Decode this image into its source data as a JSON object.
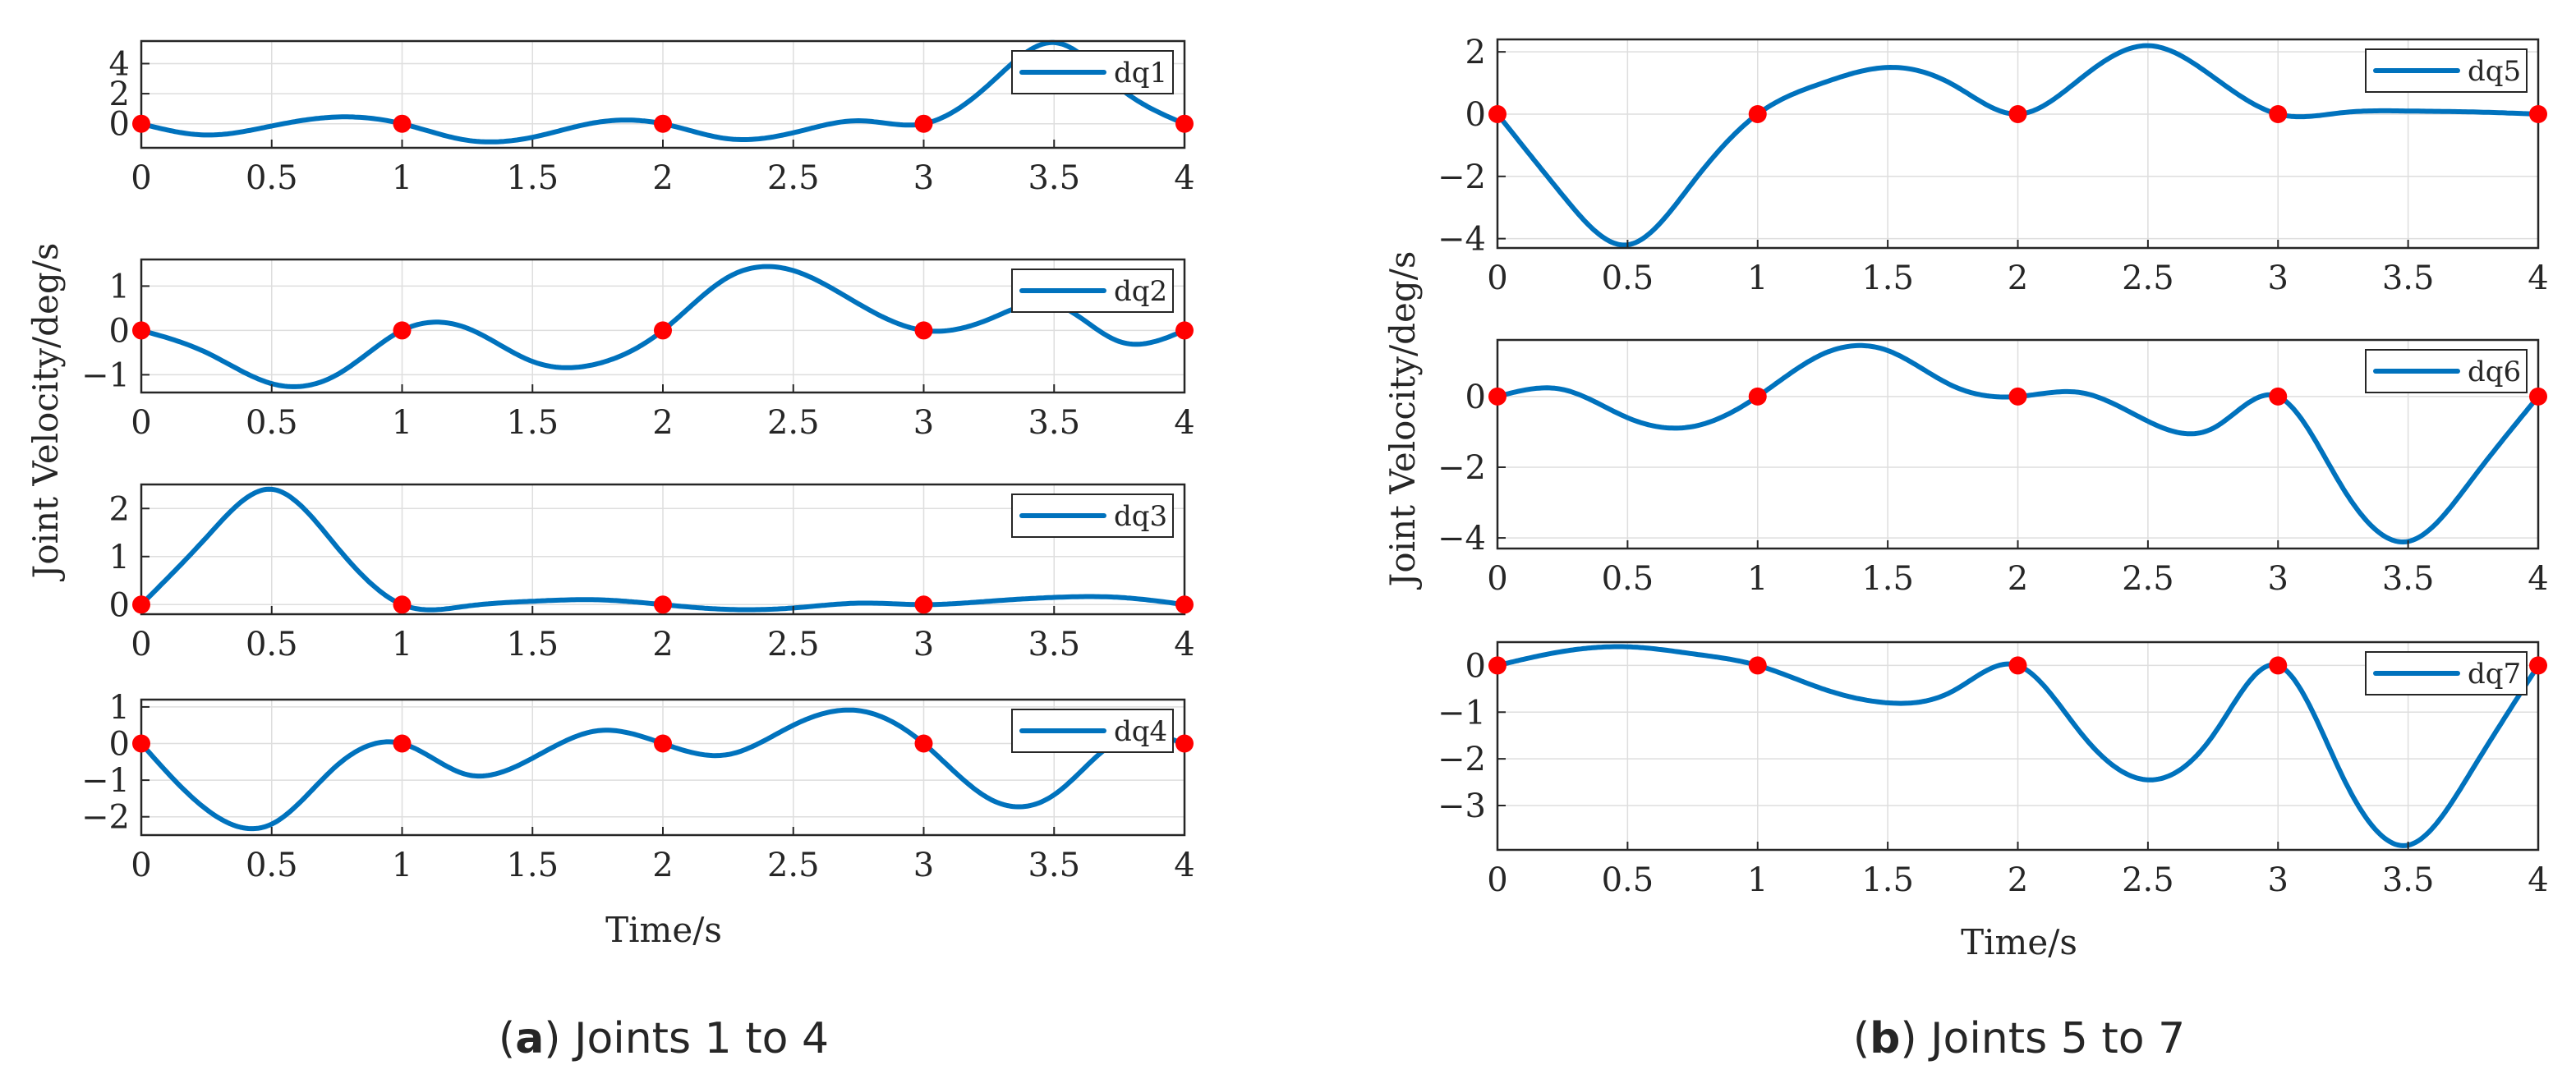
{
  "colors": {
    "line": "#0072BD",
    "marker": "#FF0000"
  },
  "captions": [
    {
      "letter": "a",
      "text": "Joints 1 to 4"
    },
    {
      "letter": "b",
      "text": "Joints 5 to 7"
    }
  ],
  "panels": [
    {
      "id": "a",
      "ylabel": "Joint Velocity/deg/s",
      "xlabel": "Time/s"
    },
    {
      "id": "b",
      "ylabel": "Joint Velocity/deg/s",
      "xlabel": "Time/s"
    }
  ],
  "chart_data": [
    {
      "type": "line",
      "panel": "a",
      "title": "",
      "legend": "dq1",
      "legend_position": "top-right",
      "xlim": [
        0,
        4
      ],
      "ylim": [
        -1.6,
        5.5
      ],
      "xticks": [
        0,
        0.5,
        1,
        1.5,
        2,
        2.5,
        3,
        3.5,
        4
      ],
      "xtick_labels": [
        "0",
        "0.5",
        "1",
        "1.5",
        "2",
        "2.5",
        "3",
        "3.5",
        "4"
      ],
      "yticks": [
        0,
        2,
        4
      ],
      "ytick_labels": [
        "0",
        "2",
        "4"
      ],
      "x": [
        0,
        0.25,
        0.5,
        0.75,
        1,
        1.25,
        1.5,
        1.75,
        2,
        2.25,
        2.5,
        2.75,
        3,
        3.25,
        3.5,
        3.75,
        4
      ],
      "y": [
        0,
        -0.75,
        -0.15,
        0.45,
        0,
        -1.1,
        -0.9,
        0.1,
        0,
        -1.0,
        -0.6,
        0.2,
        0,
        2.6,
        5.4,
        2.4,
        0
      ],
      "markers_x": [
        0,
        1,
        2,
        3,
        4
      ],
      "markers_y": [
        0,
        0,
        0,
        0,
        0
      ]
    },
    {
      "type": "line",
      "panel": "a",
      "title": "",
      "legend": "dq2",
      "legend_position": "top-right",
      "xlim": [
        0,
        4
      ],
      "ylim": [
        -1.4,
        1.6
      ],
      "xticks": [
        0,
        0.5,
        1,
        1.5,
        2,
        2.5,
        3,
        3.5,
        4
      ],
      "xtick_labels": [
        "0",
        "0.5",
        "1",
        "1.5",
        "2",
        "2.5",
        "3",
        "3.5",
        "4"
      ],
      "yticks": [
        -1,
        0,
        1
      ],
      "ytick_labels": [
        "−1",
        "0",
        "1"
      ],
      "x": [
        0,
        0.25,
        0.5,
        0.75,
        1,
        1.25,
        1.5,
        1.75,
        2,
        2.25,
        2.5,
        2.75,
        3,
        3.25,
        3.5,
        3.75,
        4
      ],
      "y": [
        0,
        -0.5,
        -1.2,
        -1.0,
        0,
        0.05,
        -0.7,
        -0.75,
        0,
        1.2,
        1.35,
        0.6,
        0,
        0.25,
        0.6,
        -0.25,
        0
      ],
      "markers_x": [
        0,
        1,
        2,
        3,
        4
      ],
      "markers_y": [
        0,
        0,
        0,
        0,
        0
      ]
    },
    {
      "type": "line",
      "panel": "a",
      "title": "",
      "legend": "dq3",
      "legend_position": "top-right",
      "xlim": [
        0,
        4
      ],
      "ylim": [
        -0.2,
        2.5
      ],
      "xticks": [
        0,
        0.5,
        1,
        1.5,
        2,
        2.5,
        3,
        3.5,
        4
      ],
      "xtick_labels": [
        "0",
        "0.5",
        "1",
        "1.5",
        "2",
        "2.5",
        "3",
        "3.5",
        "4"
      ],
      "yticks": [
        0,
        1,
        2
      ],
      "ytick_labels": [
        "0",
        "1",
        "2"
      ],
      "x": [
        0,
        0.25,
        0.5,
        0.75,
        1,
        1.25,
        1.5,
        1.75,
        2,
        2.25,
        2.5,
        2.75,
        3,
        3.25,
        3.5,
        3.75,
        4
      ],
      "y": [
        0,
        1.4,
        2.4,
        1.2,
        0,
        -0.03,
        0.07,
        0.1,
        0,
        -0.1,
        -0.07,
        0.03,
        0,
        0.07,
        0.15,
        0.15,
        0
      ],
      "markers_x": [
        0,
        1,
        2,
        3,
        4
      ],
      "markers_y": [
        0,
        0,
        0,
        0,
        0
      ]
    },
    {
      "type": "line",
      "panel": "a",
      "title": "",
      "legend": "dq4",
      "legend_position": "top-right",
      "xlim": [
        0,
        4
      ],
      "ylim": [
        -2.5,
        1.2
      ],
      "xticks": [
        0,
        0.5,
        1,
        1.5,
        2,
        2.5,
        3,
        3.5,
        4
      ],
      "xtick_labels": [
        "0",
        "0.5",
        "1",
        "1.5",
        "2",
        "2.5",
        "3",
        "3.5",
        "4"
      ],
      "yticks": [
        -2,
        -1,
        0,
        1
      ],
      "ytick_labels": [
        "−2",
        "−1",
        "0",
        "1"
      ],
      "x": [
        0,
        0.25,
        0.5,
        0.75,
        1,
        1.25,
        1.5,
        1.75,
        2,
        2.25,
        2.5,
        2.75,
        3,
        3.25,
        3.5,
        3.75,
        4
      ],
      "y": [
        0,
        -1.8,
        -2.2,
        -0.6,
        0,
        -0.85,
        -0.4,
        0.35,
        0,
        -0.3,
        0.5,
        0.9,
        0,
        -1.5,
        -1.4,
        0.1,
        0
      ],
      "markers_x": [
        0,
        1,
        2,
        3,
        4
      ],
      "markers_y": [
        0,
        0,
        0,
        0,
        0
      ]
    },
    {
      "type": "line",
      "panel": "b",
      "title": "",
      "legend": "dq5",
      "legend_position": "top-right",
      "xlim": [
        0,
        4
      ],
      "ylim": [
        -4.3,
        2.4
      ],
      "xticks": [
        0,
        0.5,
        1,
        1.5,
        2,
        2.5,
        3,
        3.5,
        4
      ],
      "xtick_labels": [
        "0",
        "0.5",
        "1",
        "1.5",
        "2",
        "2.5",
        "3",
        "3.5",
        "4"
      ],
      "yticks": [
        -4,
        -2,
        0,
        2
      ],
      "ytick_labels": [
        "−4",
        "−2",
        "0",
        "2"
      ],
      "x": [
        0,
        0.25,
        0.5,
        0.75,
        1,
        1.25,
        1.5,
        1.75,
        2,
        2.25,
        2.5,
        2.75,
        3,
        3.25,
        3.5,
        3.75,
        4
      ],
      "y": [
        0,
        -2.6,
        -4.2,
        -2.2,
        0,
        1.0,
        1.5,
        0.95,
        0,
        1.2,
        2.2,
        1.2,
        0,
        0.05,
        0.1,
        0.07,
        0
      ],
      "markers_x": [
        0,
        1,
        2,
        3,
        4
      ],
      "markers_y": [
        0,
        0,
        0,
        0,
        0
      ]
    },
    {
      "type": "line",
      "panel": "b",
      "title": "",
      "legend": "dq6",
      "legend_position": "top-right",
      "xlim": [
        0,
        4
      ],
      "ylim": [
        -4.3,
        1.6
      ],
      "xticks": [
        0,
        0.5,
        1,
        1.5,
        2,
        2.5,
        3,
        3.5,
        4
      ],
      "xtick_labels": [
        "0",
        "0.5",
        "1",
        "1.5",
        "2",
        "2.5",
        "3",
        "3.5",
        "4"
      ],
      "yticks": [
        -4,
        -2,
        0
      ],
      "ytick_labels": [
        "−4",
        "−2",
        "0"
      ],
      "x": [
        0,
        0.25,
        0.5,
        0.75,
        1,
        1.25,
        1.5,
        1.75,
        2,
        2.25,
        2.5,
        2.75,
        3,
        3.25,
        3.5,
        3.75,
        4
      ],
      "y": [
        0,
        0.2,
        -0.6,
        -0.85,
        0,
        1.2,
        1.3,
        0.3,
        0,
        0.1,
        -0.7,
        -0.9,
        0,
        -2.6,
        -4.1,
        -2.3,
        0
      ],
      "markers_x": [
        0,
        1,
        2,
        3,
        4
      ],
      "markers_y": [
        0,
        0,
        0,
        0,
        0
      ]
    },
    {
      "type": "line",
      "panel": "b",
      "title": "",
      "legend": "dq7",
      "legend_position": "top-right",
      "xlim": [
        0,
        4
      ],
      "ylim": [
        -3.95,
        0.5
      ],
      "xticks": [
        0,
        0.5,
        1,
        1.5,
        2,
        2.5,
        3,
        3.5,
        4
      ],
      "xtick_labels": [
        "0",
        "0.5",
        "1",
        "1.5",
        "2",
        "2.5",
        "3",
        "3.5",
        "4"
      ],
      "yticks": [
        -3,
        -2,
        -1,
        0
      ],
      "ytick_labels": [
        "−3",
        "−2",
        "−1",
        "0"
      ],
      "x": [
        0,
        0.25,
        0.5,
        0.75,
        1,
        1.25,
        1.5,
        1.75,
        2,
        2.25,
        2.5,
        2.75,
        3,
        3.25,
        3.5,
        3.75,
        4
      ],
      "y": [
        0,
        0.3,
        0.4,
        0.25,
        0,
        -0.5,
        -0.8,
        -0.55,
        0,
        -1.5,
        -2.45,
        -1.5,
        0,
        -2.4,
        -3.85,
        -2.2,
        0
      ],
      "markers_x": [
        0,
        1,
        2,
        3,
        4
      ],
      "markers_y": [
        0,
        0,
        0,
        0,
        0
      ]
    }
  ]
}
